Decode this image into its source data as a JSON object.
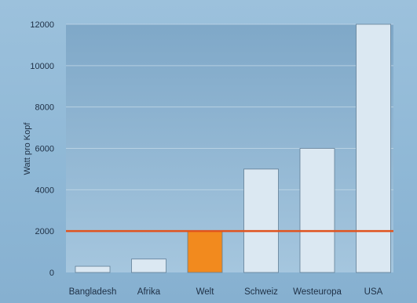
{
  "chart_data": {
    "type": "bar",
    "title": "",
    "xlabel": "",
    "ylabel": "Watt pro Kopf",
    "ylim": [
      0,
      12000
    ],
    "yticks": [
      0,
      2000,
      4000,
      6000,
      8000,
      10000,
      12000
    ],
    "ytick_labels": [
      "0",
      "2000",
      "4000",
      "6000",
      "8000",
      "10000",
      "12000"
    ],
    "categories": [
      "Bangladesh",
      "Afrika",
      "Welt",
      "Schweiz",
      "Westeuropa",
      "USA"
    ],
    "values": [
      300,
      650,
      2000,
      5000,
      6000,
      12000
    ],
    "highlight_category": "Welt",
    "reference_line": {
      "value": 2000
    },
    "grid": true,
    "legend": "none",
    "colors": {
      "bar": "#dbe8f2",
      "bar_highlight": "#f28a1e",
      "reference_line": "#e0531e",
      "plot_background": "#8fb6d3",
      "gridline": "#c9dceb",
      "text": "#1e2f44"
    }
  }
}
